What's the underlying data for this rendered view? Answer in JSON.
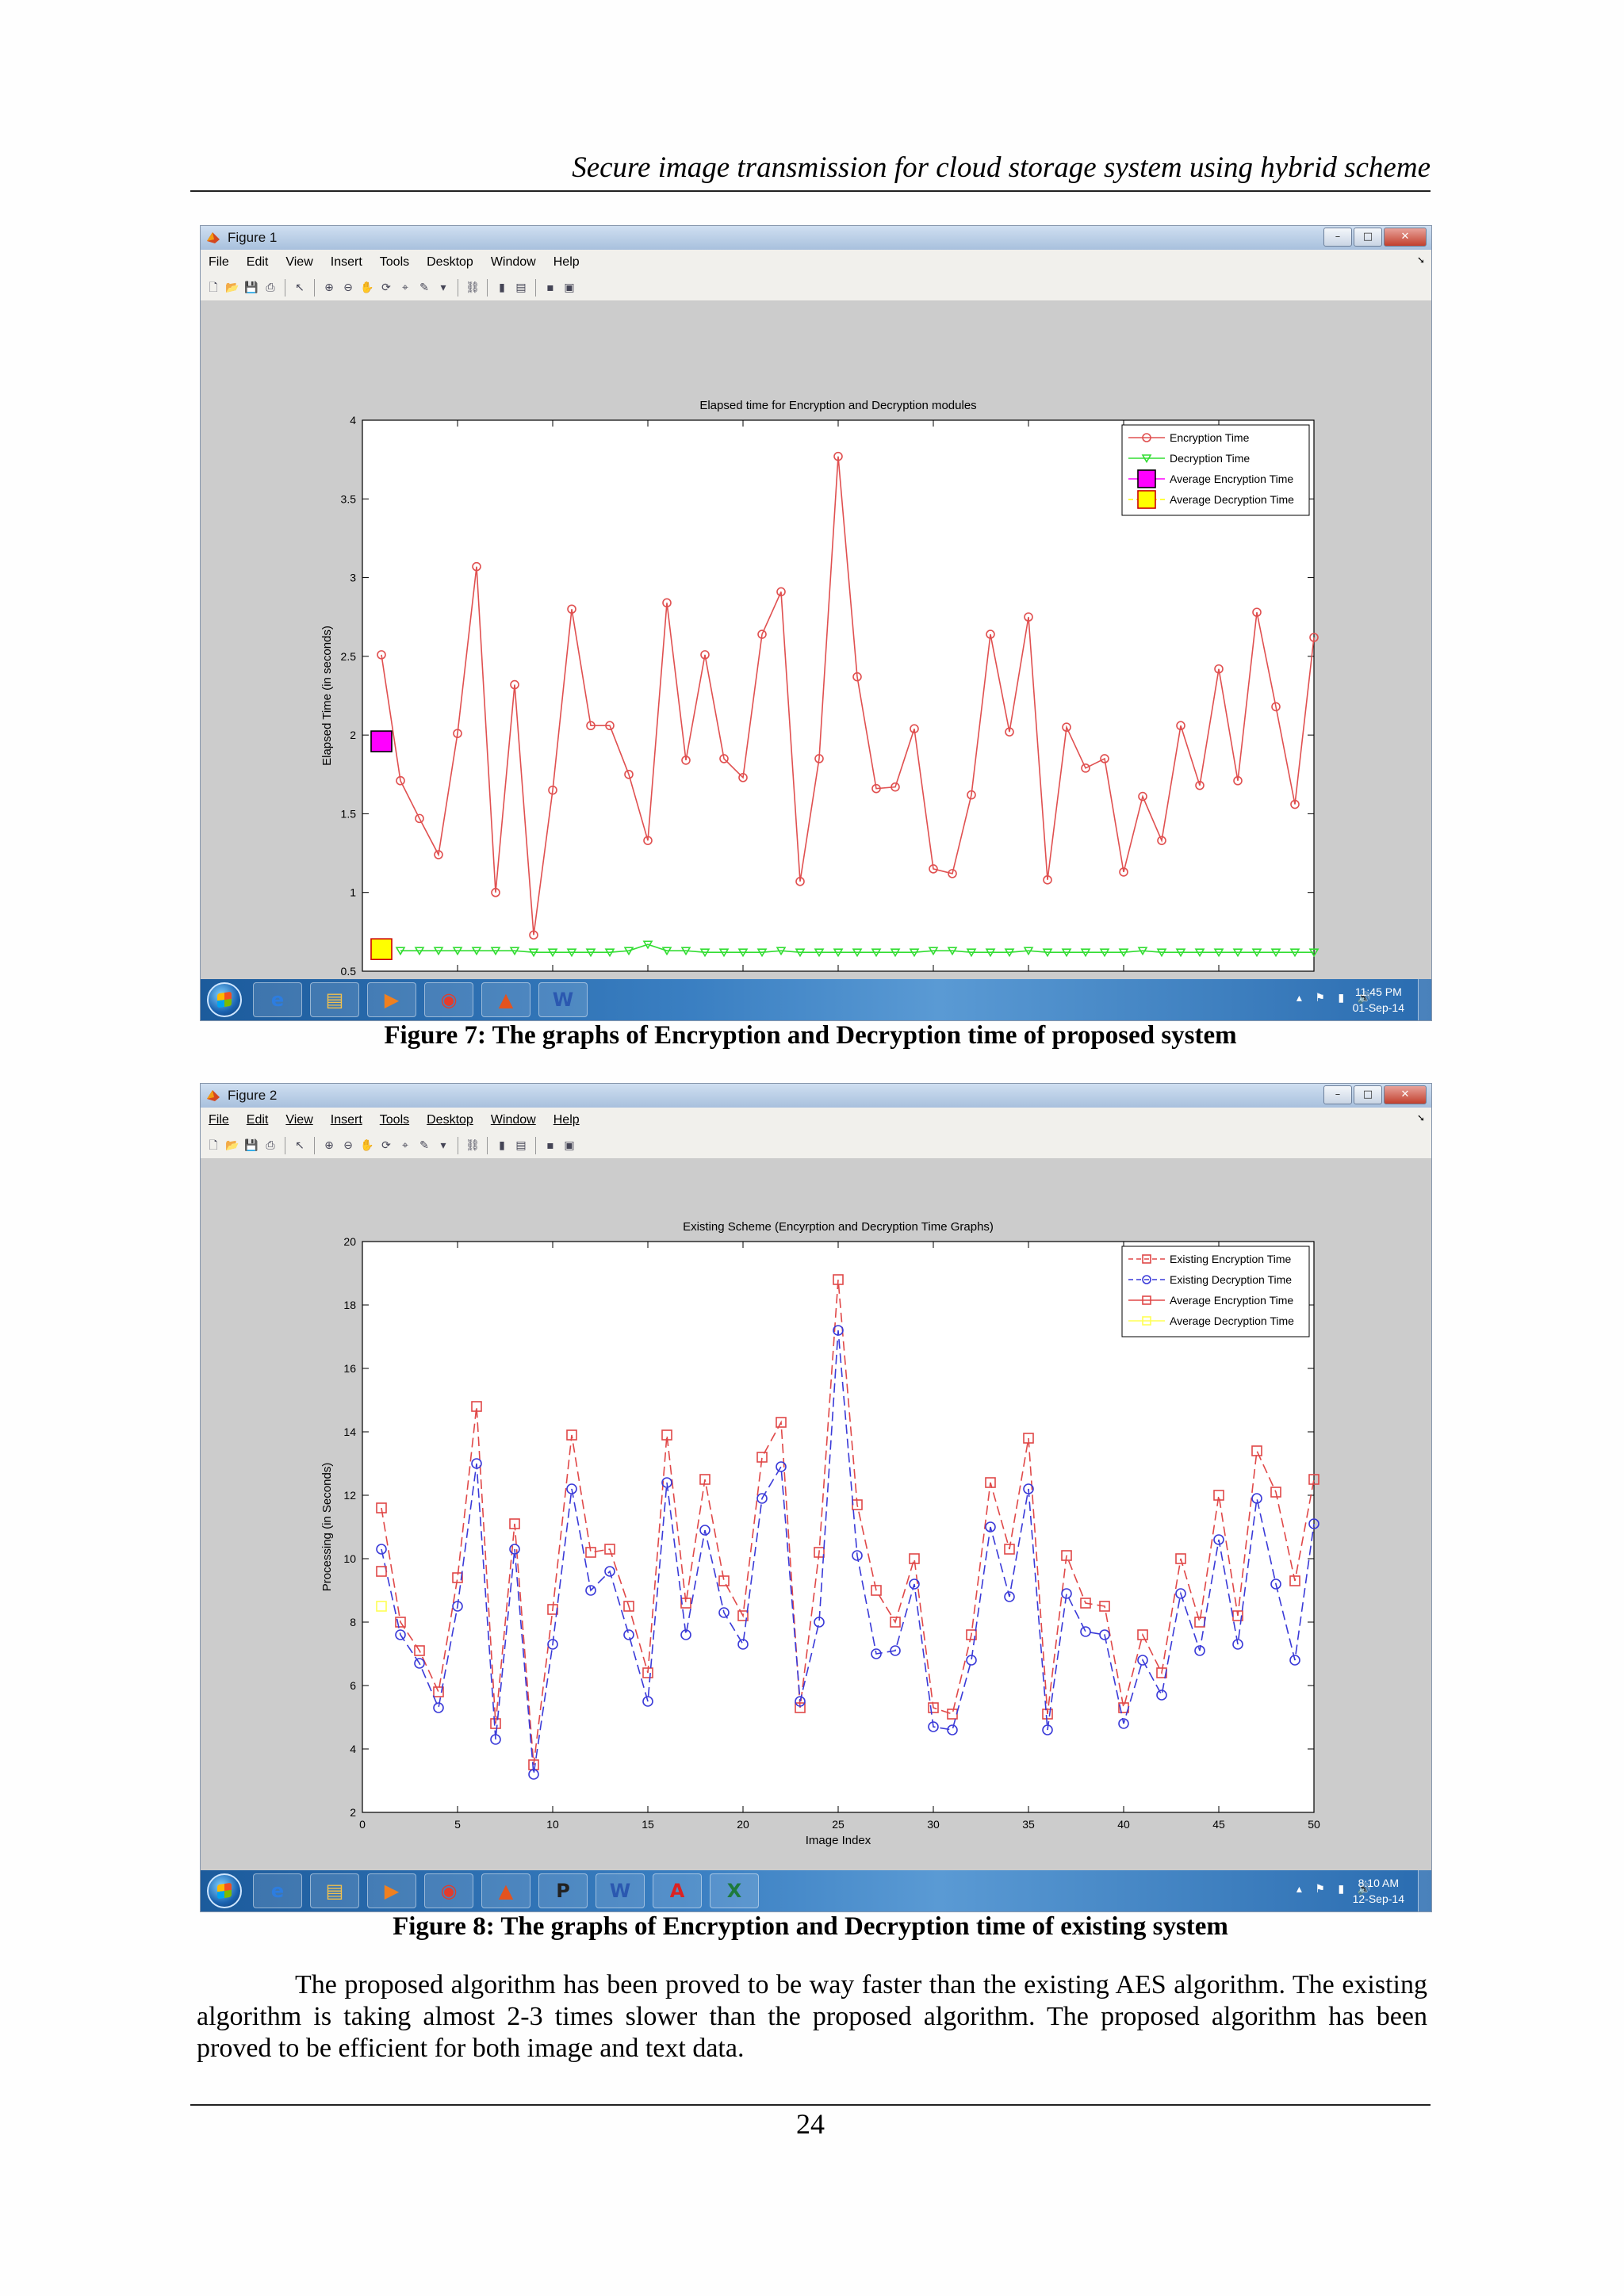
{
  "page": {
    "header": "Secure image transmission for cloud storage system using hybrid scheme",
    "page_number": "24",
    "body_text": "The proposed algorithm has been proved to be way faster than the existing AES algorithm. The existing algorithm is taking almost 2-3 times slower than the proposed algorithm. The proposed algorithm has been proved to be efficient for both image and text data."
  },
  "menu": [
    "File",
    "Edit",
    "View",
    "Insert",
    "Tools",
    "Desktop",
    "Window",
    "Help"
  ],
  "figures": [
    {
      "window_title": "Figure 1",
      "caption": "Figure 7: The graphs of Encryption and Decryption time of proposed system",
      "clock_time": "11:45 PM",
      "clock_date": "01-Sep-14"
    },
    {
      "window_title": "Figure 2",
      "caption": "Figure 8: The graphs of Encryption and Decryption time of existing system",
      "clock_time": "8:10 AM",
      "clock_date": "12-Sep-14"
    }
  ],
  "chart_data": [
    {
      "type": "line",
      "title": "Elapsed time for Encryption and Decryption modules",
      "xlabel": "Image Index",
      "ylabel": "Elapsed Time (in seconds)",
      "xlim": [
        0,
        50
      ],
      "ylim": [
        0.5,
        4
      ],
      "xticks": [
        0,
        5,
        10,
        15,
        20,
        25,
        30,
        35,
        40,
        45,
        50
      ],
      "yticks": [
        0.5,
        1,
        1.5,
        2,
        2.5,
        3,
        3.5,
        4
      ],
      "legend_position": "top-right",
      "series": [
        {
          "name": "Encryption Time",
          "color": "#e05050",
          "marker": "circle",
          "style": "solid",
          "x": [
            1,
            2,
            3,
            4,
            5,
            6,
            7,
            8,
            9,
            10,
            11,
            12,
            13,
            14,
            15,
            16,
            17,
            18,
            19,
            20,
            21,
            22,
            23,
            24,
            25,
            26,
            27,
            28,
            29,
            30,
            31,
            32,
            33,
            34,
            35,
            36,
            37,
            38,
            39,
            40,
            41,
            42,
            43,
            44,
            45,
            46,
            47,
            48,
            49,
            50
          ],
          "y": [
            2.51,
            1.71,
            1.47,
            1.24,
            2.01,
            3.07,
            1.0,
            2.32,
            0.73,
            1.65,
            2.8,
            2.06,
            2.06,
            1.75,
            1.33,
            2.84,
            1.84,
            2.51,
            1.85,
            1.73,
            2.64,
            2.91,
            1.07,
            1.85,
            3.77,
            2.37,
            1.66,
            1.67,
            2.04,
            1.15,
            1.12,
            1.62,
            2.64,
            2.02,
            2.75,
            1.08,
            2.05,
            1.79,
            1.85,
            1.13,
            1.61,
            1.33,
            2.06,
            1.68,
            2.42,
            1.71,
            2.78,
            2.18,
            1.56,
            2.62
          ]
        },
        {
          "name": "Decryption Time",
          "color": "#33dd33",
          "marker": "triangle-down",
          "style": "solid",
          "x": [
            2,
            3,
            4,
            5,
            6,
            7,
            8,
            9,
            10,
            11,
            12,
            13,
            14,
            15,
            16,
            17,
            18,
            19,
            20,
            21,
            22,
            23,
            24,
            25,
            26,
            27,
            28,
            29,
            30,
            31,
            32,
            33,
            34,
            35,
            36,
            37,
            38,
            39,
            40,
            41,
            42,
            43,
            44,
            45,
            46,
            47,
            48,
            49,
            50
          ],
          "y": [
            0.63,
            0.63,
            0.63,
            0.63,
            0.63,
            0.63,
            0.63,
            0.62,
            0.62,
            0.62,
            0.62,
            0.62,
            0.63,
            0.67,
            0.63,
            0.63,
            0.62,
            0.62,
            0.62,
            0.62,
            0.63,
            0.62,
            0.62,
            0.62,
            0.62,
            0.62,
            0.62,
            0.62,
            0.63,
            0.63,
            0.62,
            0.62,
            0.62,
            0.63,
            0.62,
            0.62,
            0.62,
            0.62,
            0.62,
            0.63,
            0.62,
            0.62,
            0.62,
            0.62,
            0.62,
            0.62,
            0.62,
            0.62,
            0.62
          ]
        },
        {
          "name": "Average Encryption Time",
          "color": "#ff00ff",
          "marker": "square",
          "x": [
            1
          ],
          "y": [
            1.96
          ]
        },
        {
          "name": "Average Decryption Time",
          "color": "#ffff00",
          "marker": "square",
          "x": [
            1
          ],
          "y": [
            0.64
          ]
        }
      ]
    },
    {
      "type": "line",
      "title": "Existing Scheme (Encyrption and Decryption Time Graphs)",
      "xlabel": "Image Index",
      "ylabel": "Processing (in Seconds)",
      "xlim": [
        0,
        50
      ],
      "ylim": [
        2,
        20
      ],
      "xticks": [
        0,
        5,
        10,
        15,
        20,
        25,
        30,
        35,
        40,
        45,
        50
      ],
      "yticks": [
        2,
        4,
        6,
        8,
        10,
        12,
        14,
        16,
        18,
        20
      ],
      "legend_position": "top-right",
      "series": [
        {
          "name": "Existing Encryption Time",
          "color": "#e04848",
          "marker": "square",
          "style": "dashed",
          "x": [
            1,
            2,
            3,
            4,
            5,
            6,
            7,
            8,
            9,
            10,
            11,
            12,
            13,
            14,
            15,
            16,
            17,
            18,
            19,
            20,
            21,
            22,
            23,
            24,
            25,
            26,
            27,
            28,
            29,
            30,
            31,
            32,
            33,
            34,
            35,
            36,
            37,
            38,
            39,
            40,
            41,
            42,
            43,
            44,
            45,
            46,
            47,
            48,
            49,
            50
          ],
          "y": [
            11.6,
            8.0,
            7.1,
            5.8,
            9.4,
            14.8,
            4.8,
            11.1,
            3.5,
            8.4,
            13.9,
            10.2,
            10.3,
            8.5,
            6.4,
            13.9,
            8.6,
            12.5,
            9.3,
            8.2,
            13.2,
            14.3,
            5.3,
            10.2,
            18.8,
            11.7,
            9.0,
            8.0,
            10.0,
            5.3,
            5.1,
            7.6,
            12.4,
            10.3,
            13.8,
            5.1,
            10.1,
            8.6,
            8.5,
            5.3,
            7.6,
            6.4,
            10.0,
            8.0,
            12.0,
            8.2,
            13.4,
            12.1,
            9.3,
            12.5
          ]
        },
        {
          "name": "Existing Decryption Time",
          "color": "#3a3ad8",
          "marker": "circle",
          "style": "dashed",
          "x": [
            1,
            2,
            3,
            4,
            5,
            6,
            7,
            8,
            9,
            10,
            11,
            12,
            13,
            14,
            15,
            16,
            17,
            18,
            19,
            20,
            21,
            22,
            23,
            24,
            25,
            26,
            27,
            28,
            29,
            30,
            31,
            32,
            33,
            34,
            35,
            36,
            37,
            38,
            39,
            40,
            41,
            42,
            43,
            44,
            45,
            46,
            47,
            48,
            49,
            50
          ],
          "y": [
            10.3,
            7.6,
            6.7,
            5.3,
            8.5,
            13.0,
            4.3,
            10.3,
            3.2,
            7.3,
            12.2,
            9.0,
            9.6,
            7.6,
            5.5,
            12.4,
            7.6,
            10.9,
            8.3,
            7.3,
            11.9,
            12.9,
            5.5,
            8.0,
            17.2,
            10.1,
            7.0,
            7.1,
            9.2,
            4.7,
            4.6,
            6.8,
            11.0,
            8.8,
            12.2,
            4.6,
            8.9,
            7.7,
            7.6,
            4.8,
            6.8,
            5.7,
            8.9,
            7.1,
            10.6,
            7.3,
            11.9,
            9.2,
            6.8,
            11.1
          ]
        },
        {
          "name": "Average Encryption Time",
          "color": "#e04848",
          "marker": "square",
          "x": [
            1
          ],
          "y": [
            9.6
          ]
        },
        {
          "name": "Average Decryption Time",
          "color": "#ffff55",
          "marker": "square",
          "x": [
            1
          ],
          "y": [
            8.5
          ]
        }
      ]
    }
  ]
}
